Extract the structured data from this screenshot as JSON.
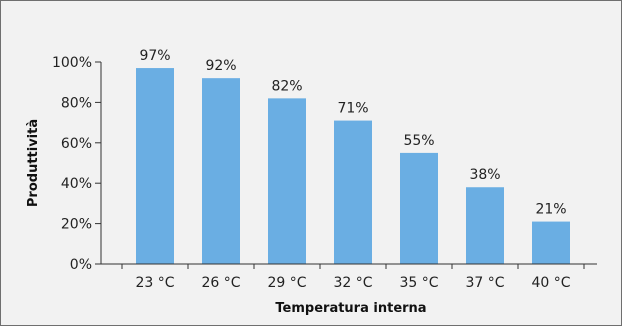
{
  "chart_data": {
    "type": "bar",
    "categories": [
      "23 °C",
      "26 °C",
      "29 °C",
      "32 °C",
      "35 °C",
      "37 °C",
      "40 °C"
    ],
    "values": [
      97,
      92,
      82,
      71,
      55,
      38,
      21
    ],
    "value_labels": [
      "97%",
      "92%",
      "82%",
      "71%",
      "55%",
      "38%",
      "21%"
    ],
    "xlabel": "Temperatura interna",
    "ylabel": "Produttività",
    "ylim": [
      0,
      100
    ],
    "yticks": [
      {
        "value": 0,
        "label": "0%"
      },
      {
        "value": 20,
        "label": "20%"
      },
      {
        "value": 40,
        "label": "40%"
      },
      {
        "value": 60,
        "label": "60%"
      },
      {
        "value": 80,
        "label": "80%"
      },
      {
        "value": 100,
        "label": "100%"
      }
    ],
    "bar_color": "#6aaee3",
    "grid": false,
    "legend": "none"
  }
}
